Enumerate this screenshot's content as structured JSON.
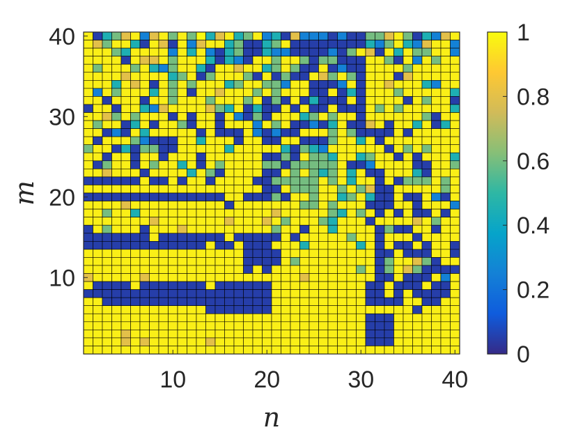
{
  "chart_data": {
    "type": "heatmap",
    "title": "",
    "xlabel": "n",
    "ylabel": "m",
    "xlim": [
      1,
      40
    ],
    "ylim": [
      1,
      40
    ],
    "x_ticks": [
      10,
      20,
      30,
      40
    ],
    "y_ticks": [
      10,
      20,
      30,
      40
    ],
    "grid": false,
    "colormap": "parula",
    "colorbar": {
      "min": 0,
      "max": 1,
      "ticks": [
        0,
        0.2,
        0.4,
        0.6,
        0.8,
        1
      ],
      "tick_labels": [
        "0",
        "0.2",
        "0.4",
        "0.6",
        "0.8",
        "1"
      ],
      "placement": "right"
    },
    "cell_grid_size": [
      40,
      40
    ],
    "cell_edge_color": "#000000",
    "row_order": "m=40 (top row) down to m=1 (bottom row); each row lists n=1..40",
    "values": [
      "YVCGAYBAYGYGLCAYCGYBCVABBBVBVVGGAYGVCBAY",
      "YAGYYCVYAVYBAYYCGVVCGYVVVVVVVVCBGYCBAYYB",
      "YYYGCYYYYBYCYBVCGVVCBBVVVVBVGYAVYCYGGYYB",
      "YYYYVYAAYGYYYCVCBVYYGYYGVGGVVVYYGVYBYGYY",
      "YGYYYGYCBGYYCVYYAYYCGYGVVYVBVVYYYYGYYYYY",
      "YYYYAYYYYCGYVGYYYGVYVGVVYAGYGVYYYVAYYYYY",
      "YYYCYAYVYGYGYYYCGYYGGBYYVVVBYVYYAYYYCBYY",
      "YBYGYYYCYGYVYYAYYYGYGYYYVVYVCVYYYGYYYYYC",
      "YYVYYYVYYGYYYGYYYGYVGVYVCVVVYVYYYYVYGYYV",
      "VYYVYYCBAYYYYAGCYVCVVYVYVVYVVVYGYGYYYYYC",
      "YYAGYGYYYVYVYYVYBVGVYYYCGYGYYVYYYYYYGVYY",
      "YGYYVCYVYYGVYYVYYYBYGYVVBVCYVVAYVYYCYVCY",
      "YYVBVYCYYYYYVYVVVYBVBVVYYYGYGVVVVYVYYYYY",
      "YVYYYGBVVVYYCYYYVYYVVYYVVVGYYCYVYYYYYYYY",
      "GYYVCVGGVVYYYYYCYYYYYCVGCBYYYYYYVYGYGYYY",
      "YYVYYVYYVYYYVYYYYYYVVGVYGGCYYCGYYVYVYYYC",
      "YVGYYVYGYYCYVYGYYYYGGVGGGGGYVVBYYYYVVYYG",
      "YYAYYYVYYYYCYGVYYYYVVYGYGCGYCYVVYYYCVYYY",
      "VVVVVVYVVYVYYVYYYYVVGGGGGYGYCYYVYVGGGYGY",
      "YYYYYYYYYYYYYYYYYYYVVYGGGYYGYGAVVYYYYYGY",
      "VVVVVVVVVVVVVVVYYVVVGVYYGYYCGYCVVYVVYBVY",
      "YYYYAYYYYYYYYYYVYYYYYYYGGYGYYYVVVYYVYYYB",
      "YYGYYCYYYYYYYYYYYYYYAYYYYYGCYGYVYVYVVYVY",
      "YYYYYYYAYYYYYYYAYYYAYGYYYGCYYYVYYYYAYGYY",
      "VYGYYYVYYYAYYYYYYYYYGYYVYYCYYYYVGVVYYVYY",
      "VVVVVVVYVVVVVVVYVVVVVYVYYYYYGYYVYYYVYYYY",
      "VVVVVVVVVVVVVYVVYVVVYYYCYYYYYCYVYVVYVYYV",
      "YYYYYYYYYYYYYYYYYVVVVYYYYYYYYYYVVYVVVYYV",
      "YYYYYYYYYYYYYYYYYVVVVYGYYYYYYYYVGYYAGVYY",
      "YYYYYYYYYYYYYYYYYVYVYYYYYYYYYGYVGYAGVVVV",
      "AYYYYYAYYYYYYYYYYYYYYYYAYYYYYYYVVYVVVYBY",
      "YVVVVYVVVVVVVYVVVVVVYYYYYYYYYYVVYVVVYVVY",
      "VVVVVVVVVVVVVVVVVVVVYYYYYYYYYYVVYVYVVVVY",
      "YYVVVVVVVVVVVVVVVVVVYYYYYYYYYYVVVVYYVVYY",
      "YYYYYYYYYYYYYVVVVVVVYYYYYYYYYYYYYYYVYYYY",
      "YYYYYYYYYYYYYYYYYYYYYYYYYYYYYYVVVYYYYYYY",
      "YYYYYYYYYYYYYYYYYYYYYYYYYYYYYYVVVYYYYYYY",
      "YYYYAYYYYYYYYYYYYYYYYYYYYYYYYYVVVYYYYYYY",
      "YYYYAYAYYYYYYAYYYYYYYYYYYYYYYYVVVYYYYYYY",
      "YYYYYYYYYYYYYYYYYYYYYYYYYYYYYYYYYYYYYYYY"
    ],
    "value_code": {
      "V": 0.05,
      "B": 0.25,
      "C": 0.45,
      "G": 0.6,
      "A": 0.8,
      "Y": 0.97
    }
  }
}
